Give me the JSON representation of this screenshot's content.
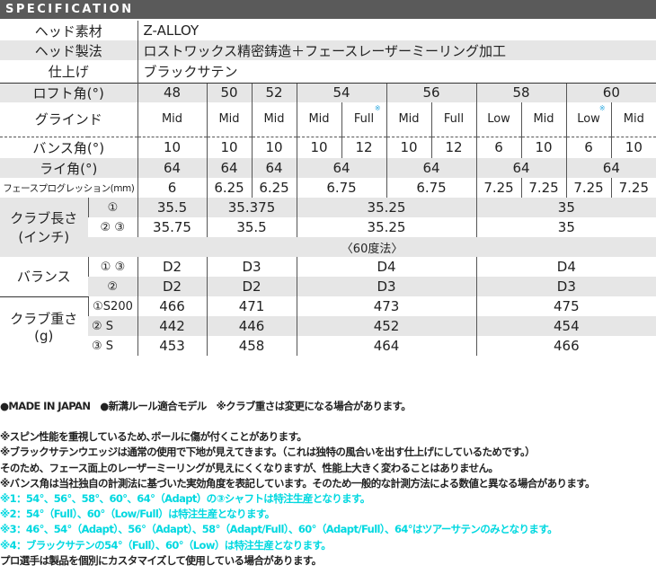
{
  "header": {
    "title": "SPECIFICATION"
  },
  "basic": [
    {
      "label": "ヘッド素材",
      "value": "Z-ALLOY"
    },
    {
      "label": "ヘッド製法",
      "value": "ロストワックス精密鋳造＋フェースレーザーミーリング加工"
    },
    {
      "label": "仕上げ",
      "value": "ブラックサテン"
    }
  ],
  "loft": {
    "label": "ロフト角(°)",
    "values": [
      "48",
      "50",
      "52",
      "54",
      "56",
      "58",
      "60"
    ]
  },
  "grind": {
    "label": "グラインド",
    "values": [
      "Mid",
      "Mid",
      "Mid",
      "Mid",
      "Full",
      "Mid",
      "Full",
      "Low",
      "Mid",
      "Low",
      "Mid"
    ],
    "note_mark": "※"
  },
  "bounce": {
    "label": "バンス角(°)",
    "values": [
      "10",
      "10",
      "10",
      "10",
      "12",
      "10",
      "12",
      "6",
      "10",
      "6",
      "10"
    ]
  },
  "lie": {
    "label": "ライ角(°)",
    "values": [
      "64",
      "64",
      "64",
      "64",
      "64",
      "64",
      "64"
    ]
  },
  "face_progression": {
    "label": "フェースプログレッション(mm)",
    "values": [
      "6",
      "6.25",
      "6.25",
      "6.75",
      "6.75",
      "7.25",
      "7.25",
      "7.25",
      "7.25"
    ]
  },
  "club_length": {
    "label": "クラブ長さ",
    "label2": "(インチ)",
    "rows": [
      {
        "sub": "①",
        "values": [
          "35.5",
          "35.375",
          "35.25",
          "35"
        ]
      },
      {
        "sub": "② ③",
        "values": [
          "35.75",
          "35.5",
          "35.25",
          "35"
        ]
      }
    ],
    "method": "〈60度法〉"
  },
  "balance": {
    "label": "バランス",
    "rows": [
      {
        "sub": "① ③",
        "values": [
          "D2",
          "D3",
          "D4",
          "D4"
        ]
      },
      {
        "sub": "②",
        "values": [
          "D2",
          "D2",
          "D3",
          "D3"
        ]
      }
    ]
  },
  "weight": {
    "label": "クラブ重さ",
    "label2": "(g)",
    "rows": [
      {
        "sub": "①S200",
        "values": [
          "466",
          "471",
          "473",
          "475"
        ]
      },
      {
        "sub": "②  S",
        "values": [
          "442",
          "446",
          "452",
          "454"
        ]
      },
      {
        "sub": "③  S",
        "values": [
          "453",
          "458",
          "464",
          "466"
        ]
      }
    ]
  },
  "notes": [
    "●MADE IN JAPAN　●新溝ルール適合モデル　※クラブ重さは変更になる場合があります。",
    "※スピン性能を重視しているため､ボールに傷が付くことがあります。",
    "※ブラックサテンウエッジは通常の使用で下地が見えてきます。（これは独特の風合いを出す仕上げにしているためです。）",
    "そのため、フェース面上のレーザーミーリングが見えにくくなりますが、性能上大きく変わることはありません。",
    "※バンス角は当社独自の計測法に基づいた実効角度を表記しています。そのため一般的な計測方法による数値と異なる場合があります。",
    "※1：54°、56°、58°、60°、64°（Adapt）の③シャフトは特注生産となります。",
    "※2：54°（Full）、60°（Low/Full）は特注生産となります。",
    "※3：46°、54°（Adapt）、56°（Adapt）、58°（Adapt/Full）、60°（Adapt/Full）、64°はツアーサテンのみとなります。",
    "※4：ブラックサテンの54°（Full）、60°（Low）は特注生産となります。",
    "プロ選手は製品を個別にカスタマイズして使用している場合があります。"
  ],
  "colors": {
    "header_bg": "#5a5a5a",
    "row_gray": "#e6e6e6",
    "note_cyan": "#00d8e0"
  }
}
